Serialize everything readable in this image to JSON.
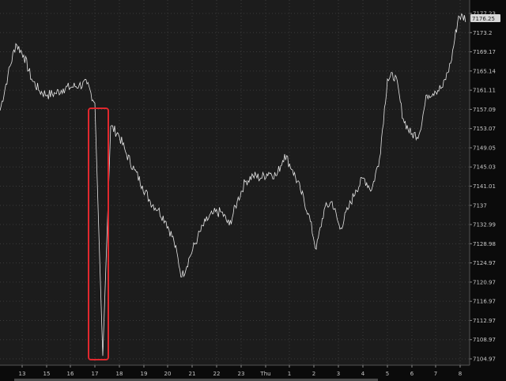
{
  "chart_data": {
    "type": "line",
    "title": "",
    "xlabel": "",
    "ylabel": "",
    "x_tick_labels": [
      "13",
      "15",
      "16",
      "17",
      "18",
      "19",
      "20",
      "21",
      "22",
      "23",
      "Thu",
      "1",
      "2",
      "3",
      "4",
      "5",
      "6",
      "7",
      "8"
    ],
    "y_tick_labels": [
      "7177.23",
      "7173.2",
      "7169.17",
      "7165.14",
      "7161.11",
      "7157.09",
      "7153.07",
      "7149.05",
      "7145.03",
      "7141.01",
      "7137",
      "7132.99",
      "7128.98",
      "7124.97",
      "7120.97",
      "7116.97",
      "7112.97",
      "7108.97",
      "7104.97"
    ],
    "ylim": [
      7104.97,
      7177.23
    ],
    "grid": true,
    "last_price_label": "7176.25",
    "series": [
      {
        "values": [
          7156.9,
          7164.3,
          7170.9,
          7168.5,
          7163.5,
          7161.0,
          7160.2,
          7160.5,
          7161.5,
          7161.8,
          7162.2,
          7162.5,
          7158.5,
          7105.6,
          7153.6,
          7151.9,
          7147.8,
          7144.5,
          7141.2,
          7137.9,
          7136.2,
          7133.7,
          7129.6,
          7122.1,
          7126.3,
          7130.4,
          7133.7,
          7135.4,
          7135.7,
          7132.9,
          7137.9,
          7142.0,
          7143.3,
          7142.8,
          7144.0,
          7143.3,
          7147.8,
          7144.5,
          7140.3,
          7135.4,
          7127.9,
          7136.2,
          7137.9,
          7132.1,
          7136.2,
          7140.3,
          7142.8,
          7140.3,
          7146.9,
          7163.5,
          7164.3,
          7155.2,
          7151.9,
          7151.9,
          7160.2,
          7161.0,
          7161.8,
          7166.8,
          7176.7,
          7176.25
        ]
      }
    ],
    "annotation": {
      "shape": "rectangle",
      "color": "#e0282e",
      "highlights": "sharp drop near 17"
    },
    "colors": {
      "background": "#1c1c1c",
      "axis_background": "#0b0b0b",
      "line": "#e6e6e6",
      "grid": "#3a3a3a"
    }
  }
}
